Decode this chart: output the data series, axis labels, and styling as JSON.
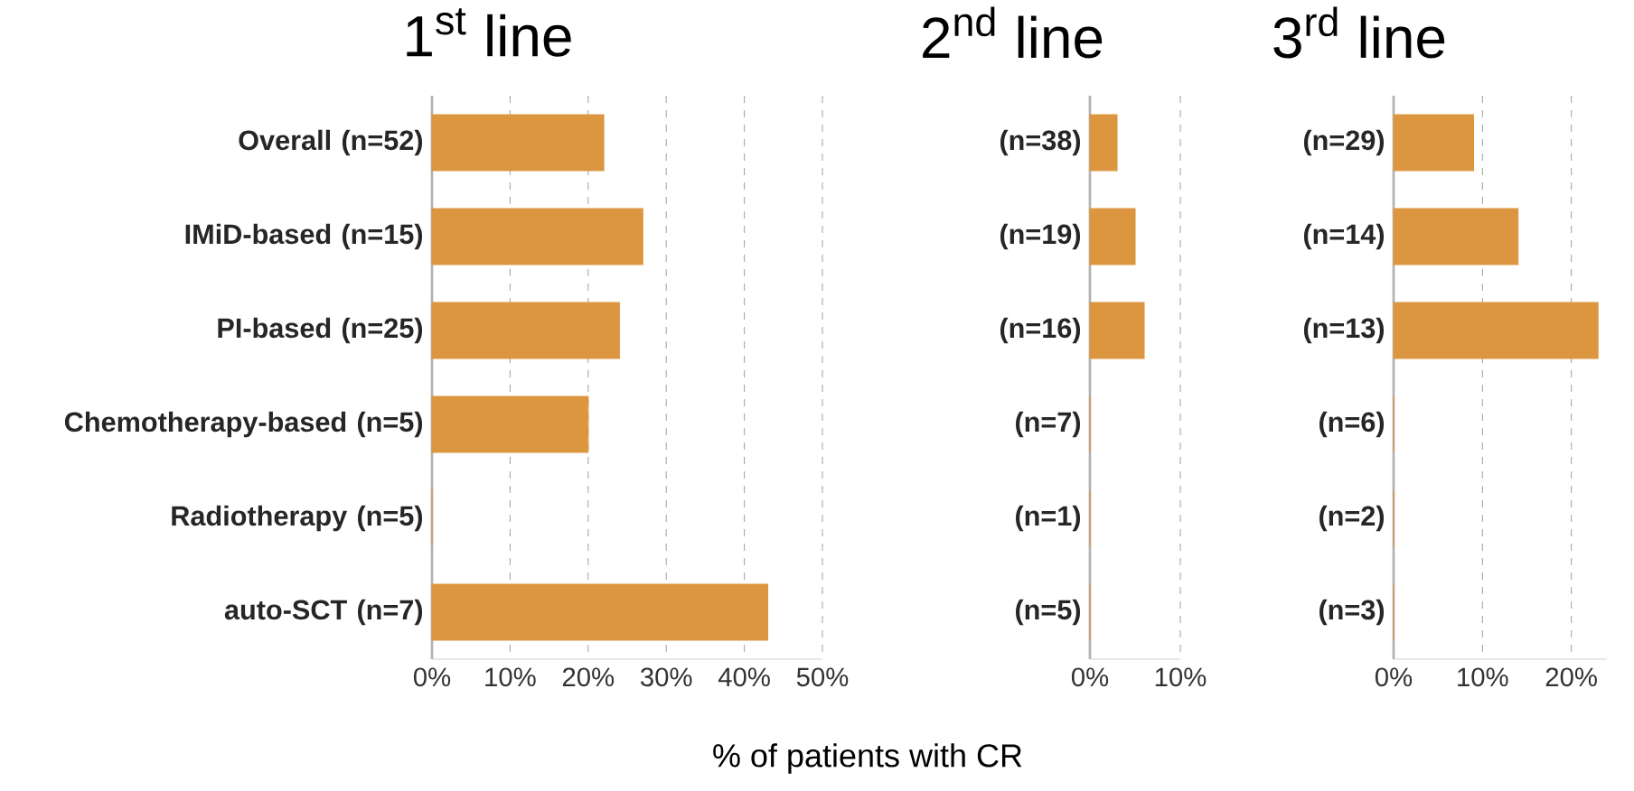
{
  "chart_data": [
    {
      "type": "bar",
      "orientation": "horizontal",
      "title": "1$^{st}$ line",
      "categories": [
        "Overall (n=52)",
        "IMiD-based (n=15)",
        "PI-based (n=25)",
        "Chemotherapy-based (n=5)",
        "Radiotherapy (n=5)",
        "auto-SCT (n=7)"
      ],
      "values": [
        22,
        27,
        24,
        20,
        0,
        43
      ],
      "color": "#dd9640",
      "xlim": [
        0,
        50
      ],
      "xticks": [
        {
          "value": 0,
          "label": "0%"
        },
        {
          "value": 10,
          "label": "10%"
        },
        {
          "value": 20,
          "label": "20%"
        },
        {
          "value": 30,
          "label": "30%"
        },
        {
          "value": 40,
          "label": "40%"
        },
        {
          "value": 50,
          "label": "50%"
        }
      ],
      "grid": "x"
    },
    {
      "type": "bar",
      "orientation": "horizontal",
      "title": "2$^{nd}$ line",
      "xlabel": "% of patients with CR",
      "categories": [
        "(n=38)",
        "(n=19)",
        "(n=16)",
        "(n=7)",
        "(n=1)",
        "(n=5)"
      ],
      "values": [
        3,
        5,
        6,
        0,
        0,
        0
      ],
      "color": "#dd9640",
      "xlim": [
        0,
        10
      ],
      "xticks": [
        {
          "value": 0,
          "label": "0%"
        },
        {
          "value": 10,
          "label": "10%"
        }
      ],
      "grid": "x"
    },
    {
      "type": "bar",
      "orientation": "horizontal",
      "title": "3$^{rd}$ line",
      "categories": [
        "(n=29)",
        "(n=14)",
        "(n=13)",
        "(n=6)",
        "(n=2)",
        "(n=3)"
      ],
      "values": [
        9,
        14,
        23,
        0,
        0,
        0
      ],
      "color": "#dd9640",
      "xlim": [
        0,
        24
      ],
      "xticks": [
        {
          "value": 0,
          "label": "0%"
        },
        {
          "value": 10,
          "label": "10%"
        },
        {
          "value": 20,
          "label": "20%"
        }
      ],
      "grid": "x"
    }
  ]
}
